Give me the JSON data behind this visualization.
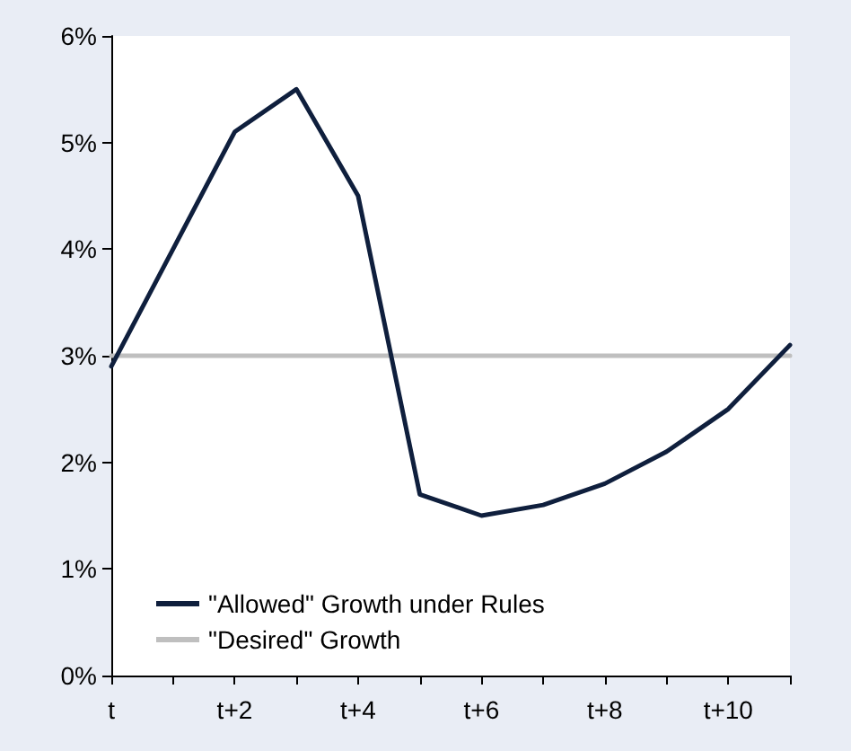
{
  "chart_data": {
    "type": "line",
    "categories": [
      "t",
      null,
      "t+2",
      null,
      "t+4",
      null,
      "t+6",
      null,
      "t+8",
      null,
      "t+10",
      null
    ],
    "series": [
      {
        "name": "\"Allowed\" Growth under Rules",
        "color": "#0f1f3d",
        "values": [
          2.9,
          4.0,
          5.1,
          5.5,
          4.5,
          1.7,
          1.5,
          1.6,
          1.8,
          2.1,
          2.5,
          3.1
        ]
      },
      {
        "name": "\"Desired\" Growth",
        "color": "#bfbfbf",
        "values": [
          3,
          3,
          3,
          3,
          3,
          3,
          3,
          3,
          3,
          3,
          3,
          3
        ]
      }
    ],
    "ylim": [
      0,
      6
    ],
    "yticks": [
      {
        "value": 0,
        "label": "0%"
      },
      {
        "value": 1,
        "label": "1%"
      },
      {
        "value": 2,
        "label": "2%"
      },
      {
        "value": 3,
        "label": "3%"
      },
      {
        "value": 4,
        "label": "4%"
      },
      {
        "value": 5,
        "label": "5%"
      },
      {
        "value": 6,
        "label": "6%"
      }
    ],
    "grid": false,
    "legend": "bottom left",
    "marker": "none",
    "line_style": "solid"
  }
}
